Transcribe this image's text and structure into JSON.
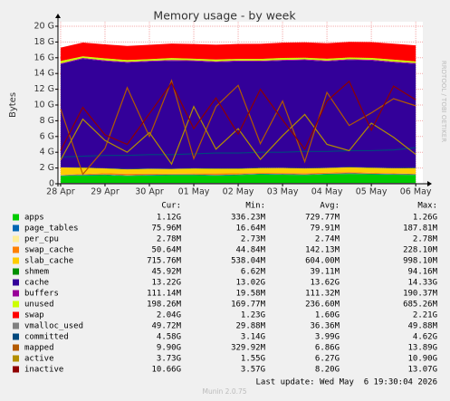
{
  "chart_data": {
    "type": "area",
    "title": "Memory usage - by week",
    "y_label": "Bytes",
    "watermark": "RRDTOOL / TOBI OETIKER",
    "x": [
      0,
      0.5,
      1,
      1.5,
      2,
      2.5,
      3,
      3.5,
      4,
      4.5,
      5,
      5.5,
      6,
      6.5,
      7,
      7.5,
      8
    ],
    "xlim": [
      -0.06,
      8.16
    ],
    "xticks": [
      {
        "value": 0,
        "label": "28 Apr"
      },
      {
        "value": 1,
        "label": "29 Apr"
      },
      {
        "value": 2,
        "label": "30 Apr"
      },
      {
        "value": 3,
        "label": "01 May"
      },
      {
        "value": 4,
        "label": "02 May"
      },
      {
        "value": 5,
        "label": "03 May"
      },
      {
        "value": 6,
        "label": "04 May"
      },
      {
        "value": 7,
        "label": "05 May"
      },
      {
        "value": 8,
        "label": "06 May"
      }
    ],
    "ylim": [
      0,
      20
    ],
    "yticks": [
      0,
      {
        "value": 2,
        "label": "2 G"
      },
      {
        "value": 4,
        "label": "4 G"
      },
      {
        "value": 6,
        "label": "6 G"
      },
      {
        "value": 8,
        "label": "8 G"
      },
      {
        "value": 10,
        "label": "10 G"
      },
      {
        "value": 12,
        "label": "12 G"
      },
      {
        "value": 14,
        "label": "14 G"
      },
      {
        "value": 16,
        "label": "16 G"
      },
      {
        "value": 18,
        "label": "18 G"
      },
      {
        "value": 20,
        "label": "20 G"
      }
    ],
    "grid": true,
    "series": [
      {
        "name": "apps",
        "color": "#00cc00",
        "style": "area",
        "values": [
          1.0,
          1.05,
          1.1,
          1.0,
          1.05,
          1.1,
          1.1,
          1.05,
          1.1,
          1.2,
          1.15,
          1.1,
          1.2,
          1.25,
          1.2,
          1.15,
          1.12
        ]
      },
      {
        "name": "page_tables",
        "color": "#0066b3",
        "style": "area",
        "values": [
          0.07,
          0.08,
          0.08,
          0.07,
          0.08,
          0.08,
          0.08,
          0.07,
          0.08,
          0.08,
          0.08,
          0.08,
          0.08,
          0.08,
          0.08,
          0.08,
          0.076
        ]
      },
      {
        "name": "per_cpu",
        "color": "#ffee99",
        "style": "area",
        "values": [
          0.003,
          0.003,
          0.003,
          0.003,
          0.003,
          0.003,
          0.003,
          0.003,
          0.003,
          0.003,
          0.003,
          0.003,
          0.003,
          0.003,
          0.003,
          0.003,
          0.003
        ]
      },
      {
        "name": "swap_cache",
        "color": "#ff8000",
        "style": "area",
        "values": [
          0.05,
          0.1,
          0.15,
          0.2,
          0.15,
          0.1,
          0.12,
          0.18,
          0.14,
          0.1,
          0.13,
          0.16,
          0.12,
          0.14,
          0.11,
          0.09,
          0.05
        ]
      },
      {
        "name": "slab_cache",
        "color": "#ffcc00",
        "style": "area",
        "values": [
          0.95,
          0.8,
          0.6,
          0.55,
          0.6,
          0.58,
          0.62,
          0.6,
          0.57,
          0.6,
          0.63,
          0.6,
          0.59,
          0.61,
          0.62,
          0.64,
          0.72
        ]
      },
      {
        "name": "shmem",
        "color": "#008f00",
        "style": "area",
        "values": [
          0.01,
          0.03,
          0.04,
          0.05,
          0.04,
          0.04,
          0.04,
          0.04,
          0.04,
          0.04,
          0.04,
          0.04,
          0.04,
          0.04,
          0.04,
          0.04,
          0.05
        ]
      },
      {
        "name": "cache",
        "color": "#330099",
        "style": "area",
        "values": [
          13.1,
          13.8,
          13.6,
          13.5,
          13.6,
          13.7,
          13.6,
          13.5,
          13.6,
          13.5,
          13.6,
          13.7,
          13.5,
          13.6,
          13.6,
          13.4,
          13.2
        ]
      },
      {
        "name": "buffers",
        "color": "#990099",
        "style": "area",
        "values": [
          0.1,
          0.12,
          0.1,
          0.11,
          0.1,
          0.12,
          0.11,
          0.1,
          0.12,
          0.11,
          0.1,
          0.12,
          0.11,
          0.1,
          0.11,
          0.12,
          0.11
        ]
      },
      {
        "name": "unused",
        "color": "#ccff00",
        "style": "area",
        "values": [
          0.3,
          0.2,
          0.25,
          0.22,
          0.2,
          0.24,
          0.21,
          0.23,
          0.2,
          0.22,
          0.25,
          0.2,
          0.23,
          0.21,
          0.22,
          0.24,
          0.2
        ]
      },
      {
        "name": "swap",
        "color": "#ff0000",
        "style": "area",
        "values": [
          1.7,
          1.75,
          1.78,
          1.8,
          1.82,
          1.84,
          1.86,
          1.88,
          1.9,
          1.92,
          1.94,
          1.95,
          1.97,
          1.98,
          2.0,
          2.02,
          2.04
        ]
      },
      {
        "name": "vmalloc_used",
        "color": "#808080",
        "style": "line",
        "values": [
          0.04,
          0.04,
          0.04,
          0.04,
          0.04,
          0.04,
          0.04,
          0.04,
          0.04,
          0.04,
          0.04,
          0.04,
          0.04,
          0.04,
          0.04,
          0.04,
          0.05
        ]
      },
      {
        "name": "committed",
        "color": "#00487d",
        "style": "line",
        "values": [
          3.4,
          3.5,
          3.6,
          3.6,
          3.7,
          3.7,
          3.8,
          3.9,
          3.9,
          4.0,
          4.0,
          4.1,
          4.1,
          4.2,
          4.2,
          4.3,
          4.58
        ]
      },
      {
        "name": "mapped",
        "color": "#b35a00",
        "style": "line",
        "values": [
          9.5,
          1.2,
          4.5,
          12.2,
          6.0,
          13.1,
          3.2,
          9.8,
          12.5,
          5.1,
          10.5,
          2.8,
          11.6,
          7.4,
          9.0,
          10.8,
          9.9
        ]
      },
      {
        "name": "active",
        "color": "#b38f00",
        "style": "line",
        "values": [
          3.0,
          8.2,
          5.5,
          4.0,
          6.5,
          2.5,
          9.8,
          4.4,
          7.0,
          3.1,
          6.1,
          8.8,
          5.0,
          4.2,
          7.7,
          5.9,
          3.73
        ]
      },
      {
        "name": "inactive",
        "color": "#8f0000",
        "style": "line",
        "values": [
          4.2,
          9.7,
          6.2,
          5.0,
          8.9,
          12.8,
          7.0,
          10.9,
          6.3,
          12.0,
          8.1,
          4.4,
          10.5,
          13.0,
          6.8,
          12.4,
          10.66
        ]
      }
    ],
    "legend_table": {
      "headers": [
        "Cur:",
        "Min:",
        "Avg:",
        "Max:"
      ],
      "rows": [
        [
          "1.12G",
          "336.23M",
          "729.77M",
          "1.26G"
        ],
        [
          "75.96M",
          "16.64M",
          "79.91M",
          "187.81M"
        ],
        [
          "2.78M",
          "2.73M",
          "2.74M",
          "2.78M"
        ],
        [
          "50.64M",
          "44.84M",
          "142.13M",
          "228.10M"
        ],
        [
          "715.76M",
          "538.04M",
          "604.00M",
          "998.10M"
        ],
        [
          "45.92M",
          "6.62M",
          "39.11M",
          "94.16M"
        ],
        [
          "13.22G",
          "13.02G",
          "13.62G",
          "14.33G"
        ],
        [
          "111.14M",
          "19.58M",
          "111.32M",
          "190.37M"
        ],
        [
          "198.26M",
          "169.77M",
          "236.60M",
          "685.26M"
        ],
        [
          "2.04G",
          "1.23G",
          "1.60G",
          "2.21G"
        ],
        [
          "49.72M",
          "29.88M",
          "36.36M",
          "49.88M"
        ],
        [
          "4.58G",
          "3.14G",
          "3.99G",
          "4.62G"
        ],
        [
          "9.90G",
          "329.92M",
          "6.86G",
          "13.89G"
        ],
        [
          "3.73G",
          "1.55G",
          "6.27G",
          "10.90G"
        ],
        [
          "10.66G",
          "3.57G",
          "8.20G",
          "13.07G"
        ]
      ]
    },
    "last_update": "Last update: Wed May  6 19:30:04 2026",
    "generator": "Munin 2.0.75"
  }
}
